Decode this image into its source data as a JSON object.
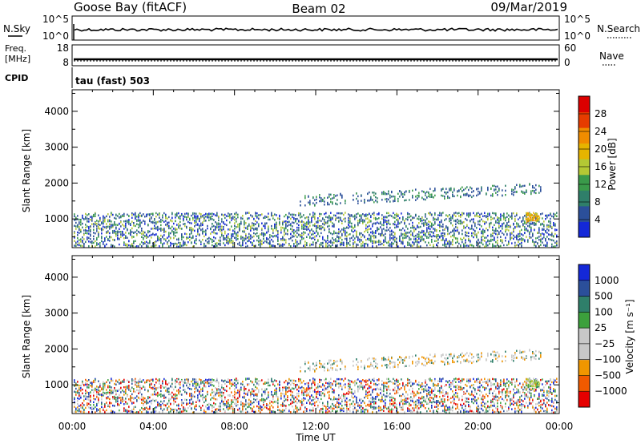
{
  "header": {
    "station": "Goose Bay (fitACF)",
    "beam": "Beam 02",
    "date": "09/Mar/2019"
  },
  "strip_panels": {
    "nsky": {
      "left_label": "N.Sky",
      "left_ticks": [
        "10^5",
        "10^0"
      ],
      "right_ticks": [
        "10^5",
        "10^0"
      ],
      "right_label": "N.Search"
    },
    "freq": {
      "left_label_line1": "Freq.",
      "left_label_line2": "[MHz]",
      "left_ticks": [
        "18",
        "8"
      ],
      "right_ticks": [
        "60",
        "0"
      ],
      "right_label": "Nave"
    },
    "cpid": {
      "label": "CPID",
      "value": "tau (fast) 503"
    }
  },
  "time_axis": {
    "label": "Time UT",
    "ticks": [
      "00:00",
      "04:00",
      "08:00",
      "12:00",
      "16:00",
      "20:00",
      "00:00"
    ]
  },
  "colors": {
    "power_scale": [
      "#1428d8",
      "#2b4f9a",
      "#2f7f6a",
      "#3a9a4a",
      "#b4c834",
      "#e6b400",
      "#f08c00",
      "#e63c00",
      "#dc0000"
    ],
    "velocity_scale": [
      "#e60000",
      "#f05a00",
      "#f09600",
      "#c8c8c8",
      "#c8c8c8",
      "#3ca03c",
      "#2f7f6a",
      "#2b4f9a",
      "#1428d8"
    ]
  },
  "chart_data": [
    {
      "type": "heatmap",
      "name": "power",
      "ylabel": "Slant Range [km]",
      "yticks": [
        "1000",
        "2000",
        "3000",
        "4000"
      ],
      "ylim": [
        200,
        4600
      ],
      "xlim_hours": [
        0,
        24
      ],
      "colorbar": {
        "label": "Power [dB]",
        "ticks": [
          "4",
          "8",
          "12",
          "16",
          "20",
          "24",
          "28"
        ]
      }
    },
    {
      "type": "heatmap",
      "name": "velocity",
      "ylabel": "Slant Range [km]",
      "yticks": [
        "1000",
        "2000",
        "3000",
        "4000"
      ],
      "ylim": [
        200,
        4600
      ],
      "xlim_hours": [
        0,
        24
      ],
      "colorbar": {
        "label": "Velocity [m s⁻¹]",
        "ticks": [
          "1000",
          "500",
          "100",
          "25",
          "−25",
          "−100",
          "−500",
          "−1000"
        ]
      }
    }
  ]
}
